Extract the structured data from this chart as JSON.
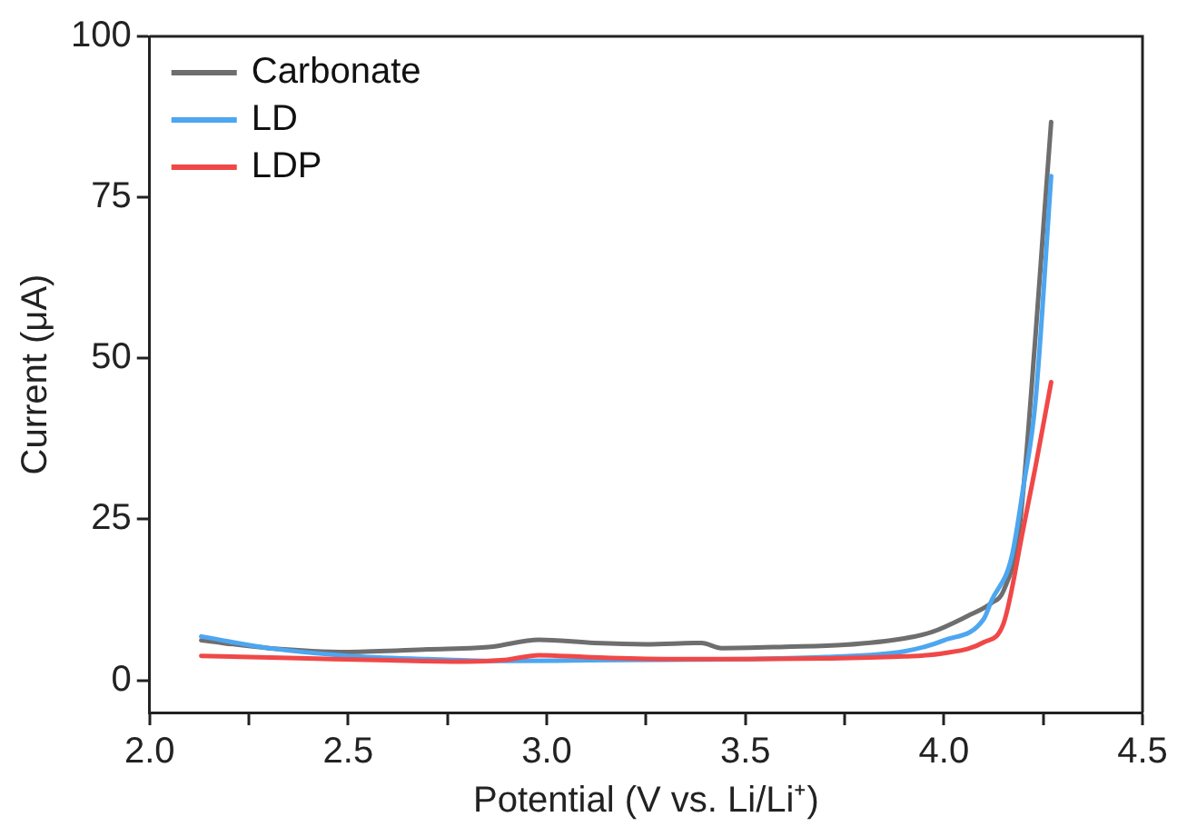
{
  "chart_data": {
    "type": "line",
    "xlabel": "Potential (V vs. Li/Li⁺)",
    "ylabel": "Current (μA)",
    "xlim": [
      2.0,
      4.5
    ],
    "ylim": [
      -5,
      100
    ],
    "xticks": [
      {
        "value": 2.0,
        "label": "2.0"
      },
      {
        "value": 2.25,
        "label": null
      },
      2.5,
      {
        "value": 2.75,
        "label": null
      },
      {
        "value": 3.0,
        "label": "3.0"
      },
      {
        "value": 3.25,
        "label": null
      },
      3.5,
      {
        "value": 3.75,
        "label": null
      },
      {
        "value": 4.0,
        "label": "4.0"
      },
      {
        "value": 4.25,
        "label": null
      },
      4.5
    ],
    "yticks": [
      0,
      25,
      50,
      75,
      100
    ],
    "grid": false,
    "legend": "top left",
    "marker": "none",
    "line_style": "solid",
    "series": [
      {
        "name": "Carbonate",
        "color": "#6e6e6e",
        "x": [
          2.13,
          2.3,
          2.5,
          2.7,
          2.86,
          2.98,
          3.12,
          3.25,
          3.39,
          3.44,
          3.6,
          3.75,
          3.9,
          3.97,
          4.06,
          4.12,
          4.15,
          4.19,
          4.23,
          4.25,
          4.27
        ],
        "values": [
          6.2,
          5.0,
          4.4,
          4.8,
          5.2,
          6.3,
          5.8,
          5.6,
          5.8,
          5.0,
          5.2,
          5.5,
          6.5,
          7.5,
          10,
          12,
          13.9,
          23.6,
          53,
          70,
          86.7
        ]
      },
      {
        "name": "LD",
        "color": "#4da6f0",
        "x": [
          2.13,
          2.3,
          2.5,
          2.7,
          2.9,
          3.1,
          3.3,
          3.5,
          3.7,
          3.9,
          4.0,
          4.1,
          4.12,
          4.17,
          4.2,
          4.23,
          4.27
        ],
        "values": [
          6.8,
          5.0,
          3.8,
          3.3,
          3.0,
          3.1,
          3.2,
          3.3,
          3.6,
          4.5,
          6.2,
          9.5,
          12.4,
          19,
          30,
          43,
          78.3
        ]
      },
      {
        "name": "LDP",
        "color": "#f04848",
        "x": [
          2.13,
          2.4,
          2.6,
          2.8,
          2.9,
          2.98,
          3.1,
          3.3,
          3.5,
          3.7,
          3.9,
          4.0,
          4.1,
          4.15,
          4.2,
          4.23,
          4.27
        ],
        "values": [
          3.8,
          3.4,
          3.1,
          2.9,
          3.2,
          3.9,
          3.6,
          3.3,
          3.3,
          3.4,
          3.7,
          4.2,
          5.9,
          8.8,
          23.6,
          33,
          46.3
        ]
      }
    ]
  }
}
